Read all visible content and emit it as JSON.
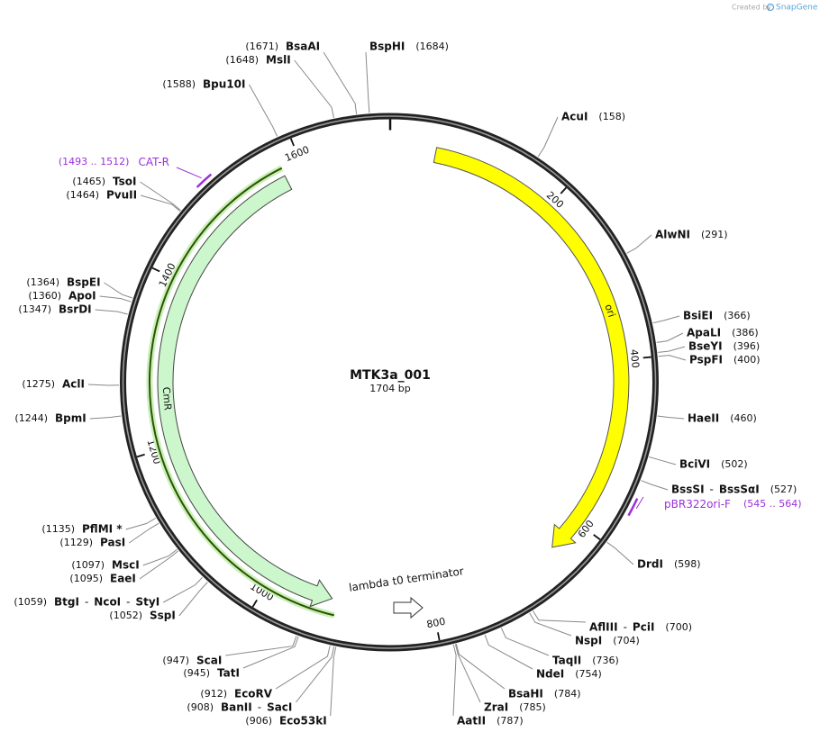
{
  "credit": {
    "prefix": "Created by",
    "brand": "SnapGene"
  },
  "plasmid": {
    "name": "MTK3a_001",
    "size_label": "1704 bp",
    "length": 1704
  },
  "ticks": [
    200,
    400,
    600,
    800,
    1000,
    1200,
    1400,
    1600
  ],
  "features": [
    {
      "name": "ori"
    },
    {
      "name": "CmR"
    },
    {
      "name": "lambda t0 terminator"
    }
  ],
  "primers": [
    {
      "name": "CAT-R",
      "start": 1493,
      "end": 1512,
      "range_label": "(1493 .. 1512)"
    },
    {
      "name": "pBR322ori-F",
      "start": 545,
      "end": 564,
      "range_label": "(545 .. 564)"
    }
  ],
  "enzymes": [
    {
      "names": [
        "BspHI"
      ],
      "position": 1684,
      "position_label": "(1684)"
    },
    {
      "names": [
        "AcuI"
      ],
      "position": 158,
      "position_label": "(158)"
    },
    {
      "names": [
        "AlwNI"
      ],
      "position": 291,
      "position_label": "(291)"
    },
    {
      "names": [
        "BsiEI"
      ],
      "position": 366,
      "position_label": "(366)"
    },
    {
      "names": [
        "ApaLI"
      ],
      "position": 386,
      "position_label": "(386)"
    },
    {
      "names": [
        "BseYI"
      ],
      "position": 396,
      "position_label": "(396)"
    },
    {
      "names": [
        "PspFI"
      ],
      "position": 400,
      "position_label": "(400)"
    },
    {
      "names": [
        "HaeII"
      ],
      "position": 460,
      "position_label": "(460)"
    },
    {
      "names": [
        "BciVI"
      ],
      "position": 502,
      "position_label": "(502)"
    },
    {
      "names": [
        "BssSI",
        "-",
        "BssSαI"
      ],
      "position": 527,
      "position_label": "(527)"
    },
    {
      "names": [
        "DrdI"
      ],
      "position": 598,
      "position_label": "(598)"
    },
    {
      "names": [
        "AflIII",
        "-",
        "PciI"
      ],
      "position": 700,
      "position_label": "(700)"
    },
    {
      "names": [
        "NspI"
      ],
      "position": 704,
      "position_label": "(704)"
    },
    {
      "names": [
        "TaqII"
      ],
      "position": 736,
      "position_label": "(736)"
    },
    {
      "names": [
        "NdeI"
      ],
      "position": 754,
      "position_label": "(754)"
    },
    {
      "names": [
        "BsaHI"
      ],
      "position": 784,
      "position_label": "(784)"
    },
    {
      "names": [
        "ZraI"
      ],
      "position": 785,
      "position_label": "(785)"
    },
    {
      "names": [
        "AatII"
      ],
      "position": 787,
      "position_label": "(787)"
    },
    {
      "names": [
        "Eco53kI"
      ],
      "position": 906,
      "position_label": "(906)"
    },
    {
      "names": [
        "BanII",
        "-",
        "SacI"
      ],
      "position": 908,
      "position_label": "(908)"
    },
    {
      "names": [
        "EcoRV"
      ],
      "position": 912,
      "position_label": "(912)"
    },
    {
      "names": [
        "TatI"
      ],
      "position": 945,
      "position_label": "(945)"
    },
    {
      "names": [
        "ScaI"
      ],
      "position": 947,
      "position_label": "(947)"
    },
    {
      "names": [
        "SspI"
      ],
      "position": 1052,
      "position_label": "(1052)"
    },
    {
      "names": [
        "BtgI",
        "-",
        "NcoI",
        "-",
        "StyI"
      ],
      "position": 1059,
      "position_label": "(1059)"
    },
    {
      "names": [
        "EaeI"
      ],
      "position": 1095,
      "position_label": "(1095)"
    },
    {
      "names": [
        "MscI"
      ],
      "position": 1097,
      "position_label": "(1097)"
    },
    {
      "names": [
        "PasI"
      ],
      "position": 1129,
      "position_label": "(1129)"
    },
    {
      "names": [
        "PflMI *"
      ],
      "position": 1135,
      "position_label": "(1135)"
    },
    {
      "names": [
        "BpmI"
      ],
      "position": 1244,
      "position_label": "(1244)"
    },
    {
      "names": [
        "AclI"
      ],
      "position": 1275,
      "position_label": "(1275)"
    },
    {
      "names": [
        "BsrDI"
      ],
      "position": 1347,
      "position_label": "(1347)"
    },
    {
      "names": [
        "ApoI"
      ],
      "position": 1360,
      "position_label": "(1360)"
    },
    {
      "names": [
        "BspEI"
      ],
      "position": 1364,
      "position_label": "(1364)"
    },
    {
      "names": [
        "PvuII"
      ],
      "position": 1464,
      "position_label": "(1464)"
    },
    {
      "names": [
        "TsoI"
      ],
      "position": 1465,
      "position_label": "(1465)"
    },
    {
      "names": [
        "Bpu10I"
      ],
      "position": 1588,
      "position_label": "(1588)"
    },
    {
      "names": [
        "MslI"
      ],
      "position": 1648,
      "position_label": "(1648)"
    },
    {
      "names": [
        "BsaAI"
      ],
      "position": 1671,
      "position_label": "(1671)"
    }
  ]
}
